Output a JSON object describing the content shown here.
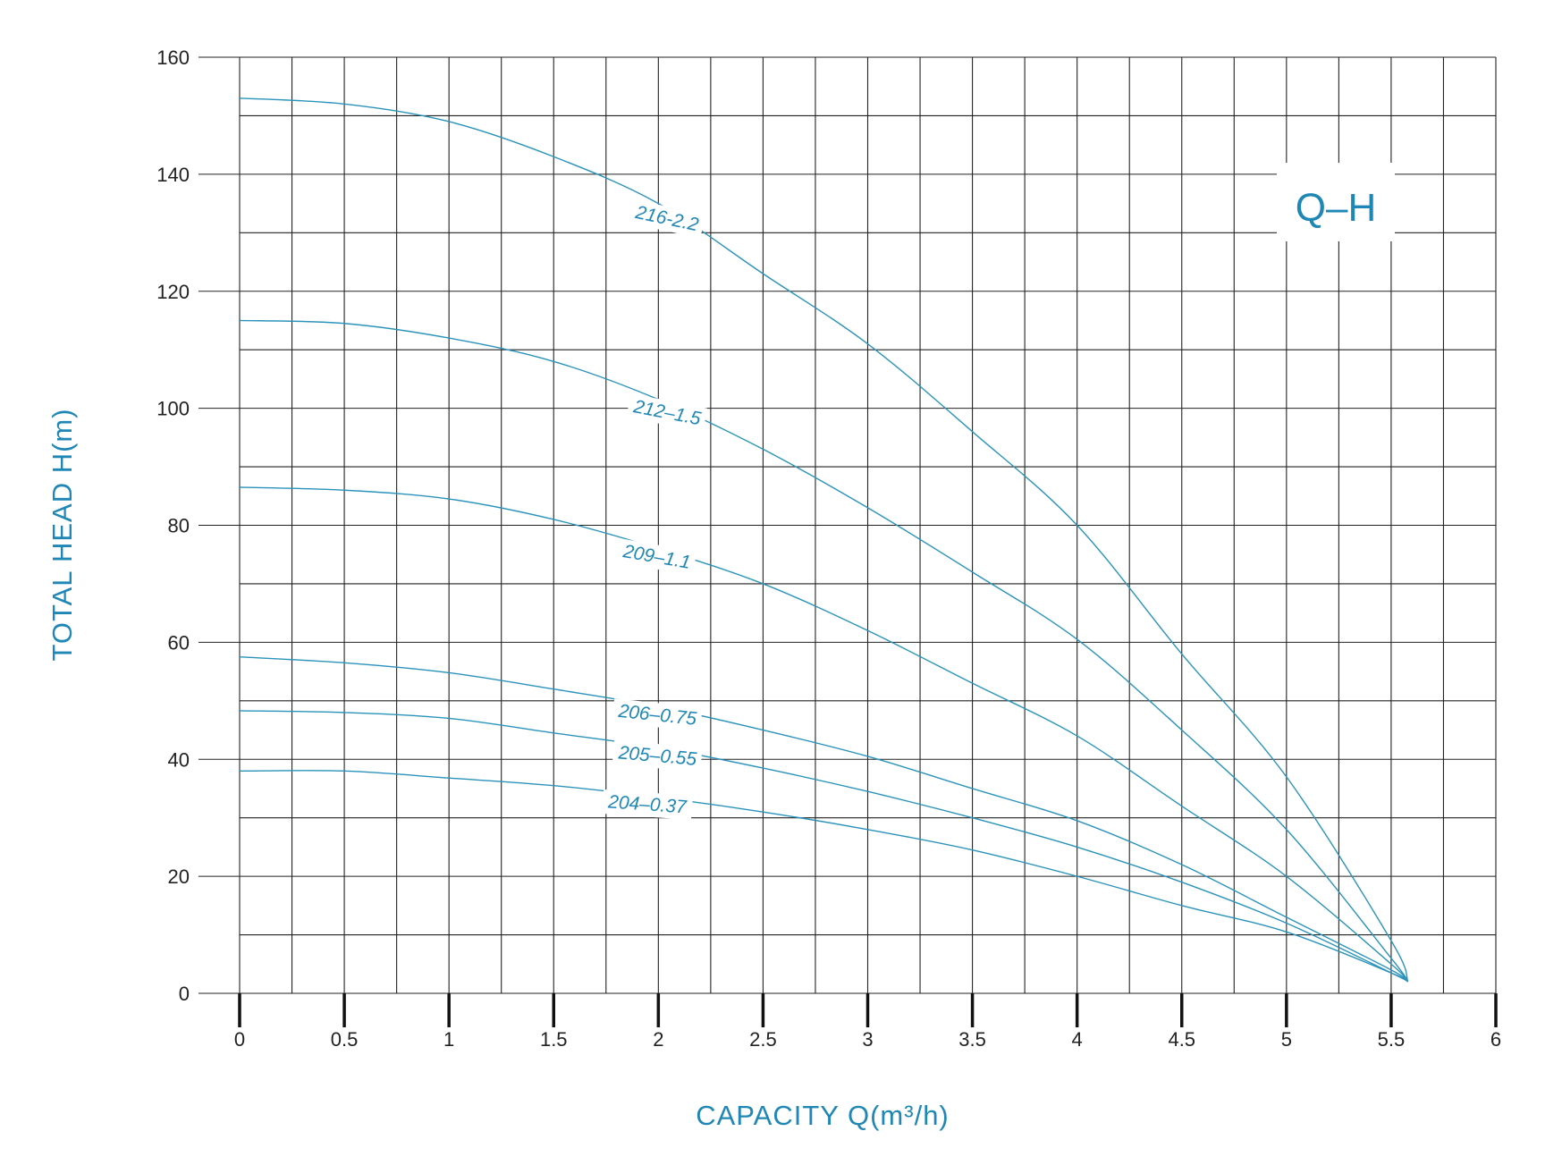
{
  "chart_data": {
    "type": "line",
    "title": "Q–H",
    "xlabel": "CAPACITY Q(m³/h)",
    "ylabel": "TOTAL HEAD H(m)",
    "xlim": [
      0,
      6
    ],
    "ylim": [
      0,
      160
    ],
    "xticks": [
      "0",
      "0.5",
      "1",
      "1.5",
      "2",
      "2.5",
      "3",
      "3.5",
      "4",
      "4.5",
      "5",
      "5.5",
      "6"
    ],
    "yticks": [
      "0",
      "20",
      "40",
      "60",
      "80",
      "100",
      "120",
      "140",
      "160"
    ],
    "grid": true,
    "series": [
      {
        "name": "216-2.2",
        "x": [
          0,
          0.5,
          1,
          1.5,
          2,
          2.5,
          3,
          3.5,
          4,
          4.5,
          5,
          5.5,
          5.58
        ],
        "y": [
          153,
          152,
          149,
          143,
          135,
          123,
          111,
          96,
          80,
          58,
          37,
          9,
          2
        ]
      },
      {
        "name": "212–1.5",
        "x": [
          0,
          0.5,
          1,
          1.5,
          2,
          2.5,
          3,
          3.5,
          4,
          4.5,
          5,
          5.5,
          5.58
        ],
        "y": [
          115,
          114.5,
          112,
          108,
          101.5,
          93,
          83,
          72,
          60.5,
          45,
          28,
          6,
          2
        ]
      },
      {
        "name": "209–1.1",
        "x": [
          0,
          0.5,
          1,
          1.5,
          2,
          2.5,
          3,
          3.5,
          4,
          4.5,
          5,
          5.5,
          5.58
        ],
        "y": [
          86.5,
          86,
          84.5,
          81,
          76,
          70,
          62,
          53,
          44,
          32,
          20,
          5,
          2
        ]
      },
      {
        "name": "206–0.75",
        "x": [
          0,
          0.5,
          1,
          1.5,
          2,
          2.5,
          3,
          3.5,
          4,
          4.5,
          5,
          5.5,
          5.58
        ],
        "y": [
          57.5,
          56.5,
          54.8,
          52,
          49,
          45,
          40.5,
          35,
          29.5,
          22,
          13,
          4,
          2
        ]
      },
      {
        "name": "205–0.55",
        "x": [
          0,
          0.5,
          1,
          1.5,
          2,
          2.5,
          3,
          3.5,
          4,
          4.5,
          5,
          5.5,
          5.58
        ],
        "y": [
          48.3,
          48,
          47,
          44.5,
          42,
          38.5,
          34.5,
          30,
          25,
          19,
          12,
          3.5,
          2
        ]
      },
      {
        "name": "204–0.37",
        "x": [
          0,
          0.5,
          1,
          1.5,
          2,
          2.5,
          3,
          3.5,
          4,
          4.5,
          5,
          5.5,
          5.58
        ],
        "y": [
          38,
          38,
          36.8,
          35.5,
          33.5,
          31,
          28,
          24.5,
          20,
          15,
          10.5,
          3.5,
          2
        ]
      }
    ],
    "colors": {
      "curve": "#2b93bb",
      "text_accent": "#1f87b6",
      "grid": "#222222",
      "tick_text": "#222222"
    }
  }
}
